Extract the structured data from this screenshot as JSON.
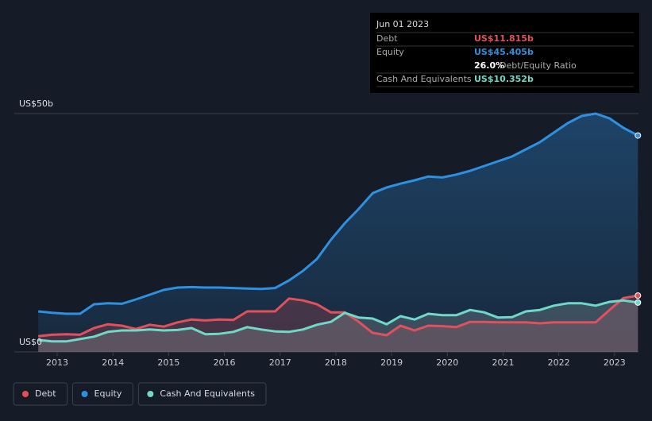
{
  "chart_data": {
    "type": "line",
    "x": [
      2012.66,
      2012.91,
      2013.16,
      2013.41,
      2013.66,
      2013.91,
      2014.16,
      2014.41,
      2014.66,
      2014.91,
      2015.16,
      2015.41,
      2015.66,
      2015.91,
      2016.16,
      2016.41,
      2016.66,
      2016.91,
      2017.16,
      2017.41,
      2017.66,
      2017.91,
      2018.16,
      2018.41,
      2018.66,
      2018.91,
      2019.16,
      2019.41,
      2019.66,
      2019.91,
      2020.16,
      2020.41,
      2020.66,
      2020.91,
      2021.16,
      2021.41,
      2021.66,
      2021.91,
      2022.16,
      2022.41,
      2022.66,
      2022.91,
      2023.16,
      2023.42
    ],
    "series": [
      {
        "name": "Debt",
        "color": "#e2505c",
        "values": [
          3.3,
          3.6,
          3.7,
          3.6,
          5.0,
          5.8,
          5.5,
          4.8,
          5.7,
          5.3,
          6.2,
          6.8,
          6.6,
          6.8,
          6.7,
          8.5,
          8.5,
          8.5,
          11.2,
          10.8,
          10.0,
          8.3,
          8.3,
          6.3,
          4.0,
          3.5,
          5.5,
          4.5,
          5.5,
          5.4,
          5.2,
          6.3,
          6.3,
          6.2,
          6.2,
          6.2,
          6.0,
          6.2,
          6.2,
          6.2,
          6.2,
          8.8,
          11.3,
          11.815
        ]
      },
      {
        "name": "Equity",
        "color": "#2e90e0",
        "values": [
          8.5,
          8.2,
          8.0,
          8.0,
          10.0,
          10.2,
          10.1,
          11.0,
          12.0,
          13.0,
          13.5,
          13.6,
          13.5,
          13.5,
          13.4,
          13.3,
          13.2,
          13.4,
          15.0,
          17.0,
          19.5,
          23.5,
          27.0,
          30.0,
          33.3,
          34.5,
          35.3,
          36.0,
          36.8,
          36.6,
          37.2,
          38.0,
          39.0,
          40.0,
          41.0,
          42.5,
          44.0,
          46.0,
          48.0,
          49.5,
          50.0,
          49.0,
          47.0,
          45.405
        ]
      },
      {
        "name": "Cash And Equivalents",
        "color": "#6fd8c9",
        "values": [
          2.5,
          2.2,
          2.2,
          2.7,
          3.2,
          4.2,
          4.5,
          4.5,
          4.7,
          4.5,
          4.6,
          5.0,
          3.7,
          3.8,
          4.2,
          5.2,
          4.7,
          4.3,
          4.2,
          4.7,
          5.7,
          6.3,
          8.2,
          7.2,
          7.0,
          5.8,
          7.5,
          6.8,
          8.0,
          7.7,
          7.7,
          8.8,
          8.3,
          7.2,
          7.3,
          8.5,
          8.8,
          9.7,
          10.2,
          10.2,
          9.7,
          10.5,
          10.8,
          10.352
        ]
      }
    ],
    "xlim": [
      2012.23,
      2023.43
    ],
    "xticks": [
      2013,
      2014,
      2015,
      2016,
      2017,
      2018,
      2019,
      2020,
      2021,
      2022,
      2023
    ],
    "ylim": [
      0,
      50
    ],
    "yticks": [
      {
        "value": 0,
        "label": "US$0"
      },
      {
        "value": 50,
        "label": "US$50b"
      }
    ],
    "grid": true,
    "tooltip": {
      "date": "Jun 01 2023",
      "rows": [
        [
          "Debt",
          "US$11.815b"
        ],
        [
          "Equity",
          "US$45.405b"
        ],
        [
          "26.0%",
          "Debt/Equity Ratio"
        ],
        [
          "Cash And Equivalents",
          "US$10.352b"
        ]
      ]
    }
  }
}
